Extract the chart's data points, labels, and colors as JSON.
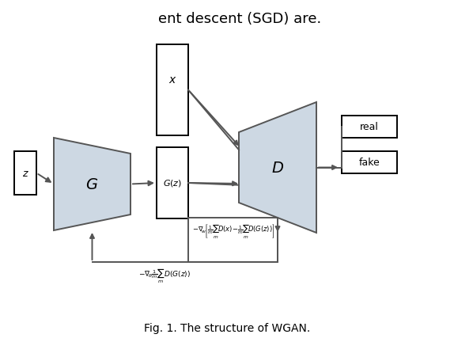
{
  "title": "Fig. 1. The structure of WGAN.",
  "header_text": "ent descent (SGD) are.",
  "background_color": "#ffffff",
  "shape_fill": "#cdd8e3",
  "shape_stroke": "#555555",
  "text_color": "#000000",
  "lw": 1.4
}
